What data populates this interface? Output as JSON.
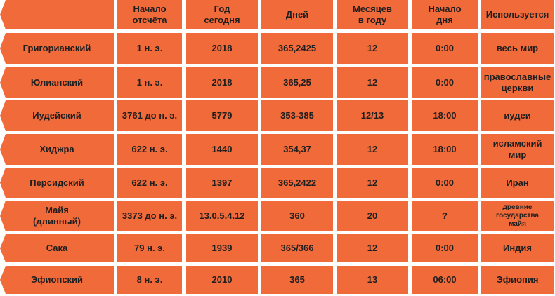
{
  "table": {
    "headers": [
      "",
      "Начало\nотсчёта",
      "Год\nсегодня",
      "Дней",
      "Месяцев\nв году",
      "Начало\nдня",
      "Используется"
    ],
    "rows": [
      [
        "Григорианский",
        "1 н. э.",
        "2018",
        "365,2425",
        "12",
        "0:00",
        "весь мир"
      ],
      [
        "Юлианский",
        "1 н. э.",
        "2018",
        "365,25",
        "12",
        "0:00",
        "православные\nцеркви"
      ],
      [
        "Иудейский",
        "3761 до н. э.",
        "5779",
        "353-385",
        "12/13",
        "18:00",
        "иудеи"
      ],
      [
        "Хиджра",
        "622 н. э.",
        "1440",
        "354,37",
        "12",
        "18:00",
        "исламский\nмир"
      ],
      [
        "Персидский",
        "622 н. э.",
        "1397",
        "365,2422",
        "12",
        "0:00",
        "Иран"
      ],
      [
        "Майя\n(длинный)",
        "3373 до н. э.",
        "13.0.5.4.12",
        "360",
        "20",
        "?",
        "древние\nгосударства\nмайя"
      ],
      [
        "Сака",
        "79 н. э.",
        "1939",
        "365/366",
        "12",
        "0:00",
        "Индия"
      ],
      [
        "Эфиопский",
        "8 н. э.",
        "2010",
        "365",
        "13",
        "06:00",
        "Эфиопия"
      ]
    ]
  },
  "colors": {
    "cell": "#f06a3a",
    "text": "#1f1f1f",
    "background": "#ffffff"
  }
}
